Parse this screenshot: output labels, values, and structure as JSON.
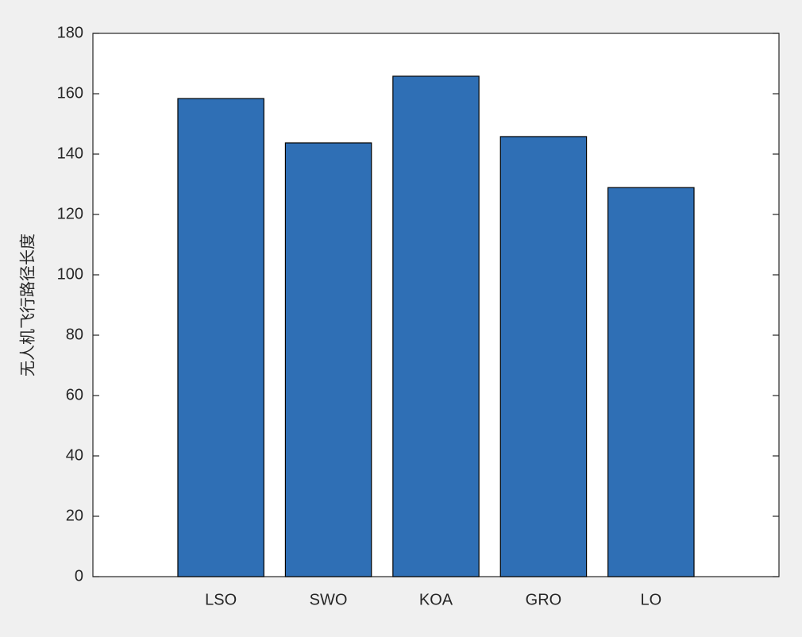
{
  "chart_data": {
    "type": "bar",
    "y_label": "无人机飞行路径长度",
    "categories": [
      "LSO",
      "SWO",
      "KOA",
      "GRO",
      "LO"
    ],
    "values": [
      158.4,
      143.7,
      165.8,
      145.8,
      128.9
    ],
    "color": "#2f6fb5",
    "ylim": [
      0,
      180
    ],
    "yticks": [
      0,
      20,
      40,
      60,
      80,
      100,
      120,
      140,
      160,
      180
    ],
    "grid": false
  }
}
